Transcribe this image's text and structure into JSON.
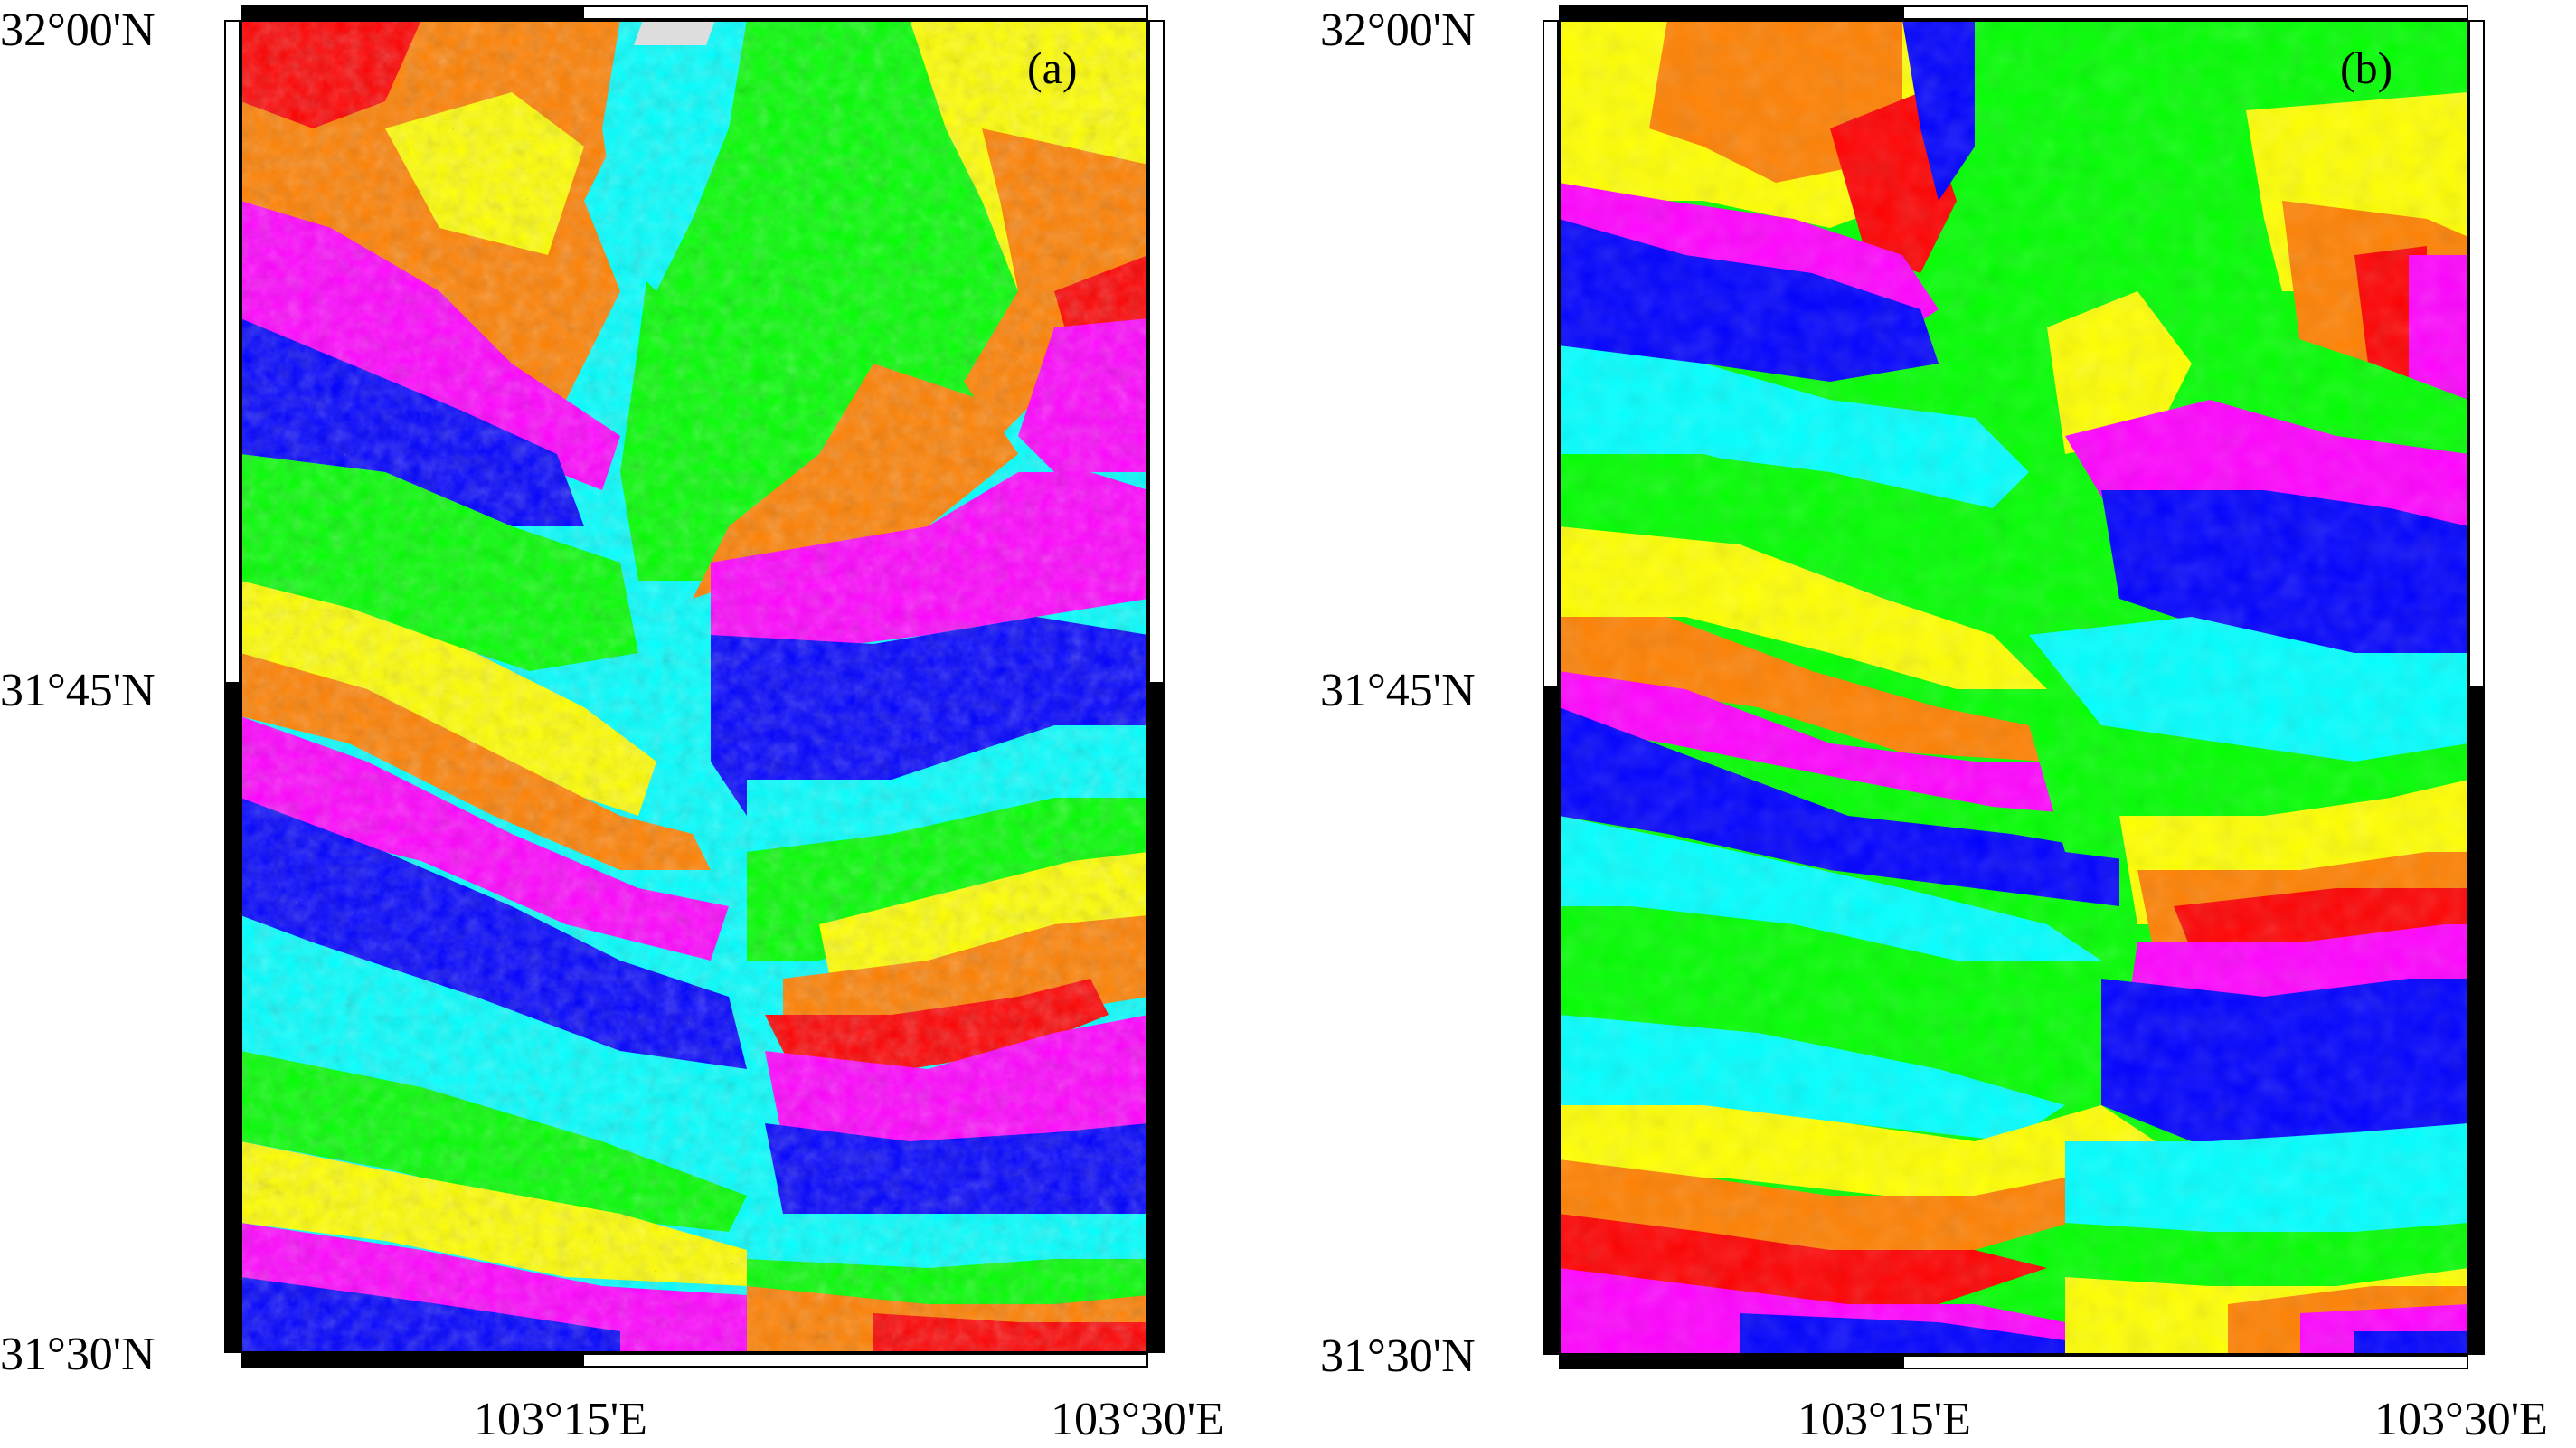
{
  "colors": {
    "phase_scale": [
      "#ff0000",
      "#ff8000",
      "#ffff00",
      "#00ff00",
      "#00ffff",
      "#0000ff",
      "#ff00ff"
    ]
  },
  "panels": [
    {
      "label": "(a)",
      "lat_top": "32°00'N",
      "lat_mid": "31°45'N",
      "lat_bottom": "31°30'N",
      "lon_mid": "103°15'E",
      "lon_right": "103°30'E",
      "texture": "fine-resolution wrapped interferogram"
    },
    {
      "label": "(b)",
      "lat_top": "32°00'N",
      "lat_mid": "31°45'N",
      "lat_bottom": "31°30'N",
      "lon_mid": "103°15'E",
      "lon_right": "103°30'E",
      "texture": "coarse-resolution simulated phase"
    }
  ]
}
